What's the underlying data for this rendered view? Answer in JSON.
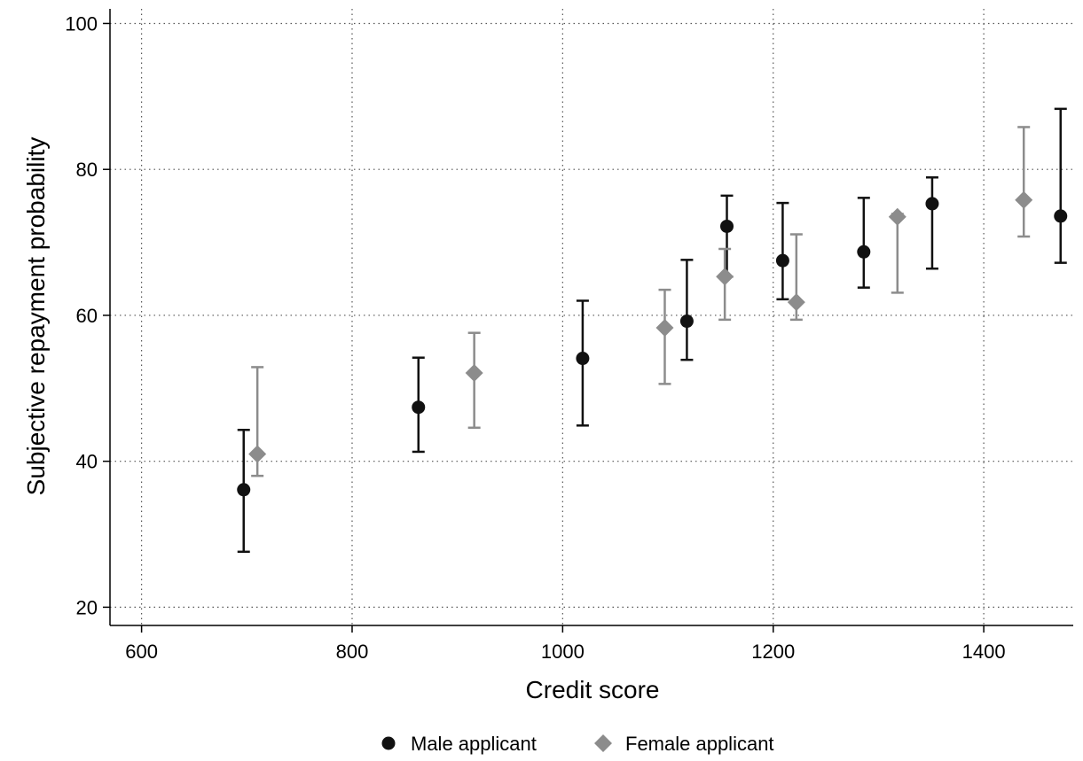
{
  "chart_data": {
    "type": "scatter",
    "title": "",
    "xlabel": "Credit score",
    "ylabel": "Subjective repayment probability",
    "xlim": [
      570,
      1485
    ],
    "ylim": [
      17.5,
      102
    ],
    "xticks": [
      600,
      800,
      1000,
      1200,
      1400
    ],
    "yticks": [
      20,
      40,
      60,
      80,
      100
    ],
    "grid": true,
    "legend_position": "bottom",
    "series": [
      {
        "name": "Male applicant",
        "marker": "circle",
        "color": "#111111",
        "points": [
          {
            "x": 697,
            "y": 36.1,
            "lo": 27.6,
            "hi": 44.3
          },
          {
            "x": 863,
            "y": 47.4,
            "lo": 41.3,
            "hi": 54.2
          },
          {
            "x": 1019,
            "y": 54.1,
            "lo": 44.9,
            "hi": 62.0
          },
          {
            "x": 1118,
            "y": 59.2,
            "lo": 53.9,
            "hi": 67.6
          },
          {
            "x": 1156,
            "y": 72.2,
            "lo": 65.3,
            "hi": 76.4
          },
          {
            "x": 1209,
            "y": 67.5,
            "lo": 62.2,
            "hi": 75.4
          },
          {
            "x": 1286,
            "y": 68.7,
            "lo": 63.8,
            "hi": 76.1
          },
          {
            "x": 1351,
            "y": 75.3,
            "lo": 66.4,
            "hi": 78.9
          },
          {
            "x": 1473,
            "y": 73.6,
            "lo": 67.2,
            "hi": 88.3
          }
        ]
      },
      {
        "name": "Female applicant",
        "marker": "diamond",
        "color": "#8c8c8c",
        "points": [
          {
            "x": 710,
            "y": 41.0,
            "lo": 38.0,
            "hi": 52.9
          },
          {
            "x": 916,
            "y": 52.1,
            "lo": 44.6,
            "hi": 57.6
          },
          {
            "x": 1097,
            "y": 58.3,
            "lo": 50.6,
            "hi": 63.5
          },
          {
            "x": 1154,
            "y": 65.3,
            "lo": 59.4,
            "hi": 69.1
          },
          {
            "x": 1222,
            "y": 61.8,
            "lo": 59.4,
            "hi": 71.1
          },
          {
            "x": 1318,
            "y": 73.5,
            "lo": 63.1,
            "hi": 73.9
          },
          {
            "x": 1438,
            "y": 75.8,
            "lo": 70.8,
            "hi": 85.8
          }
        ]
      }
    ]
  }
}
